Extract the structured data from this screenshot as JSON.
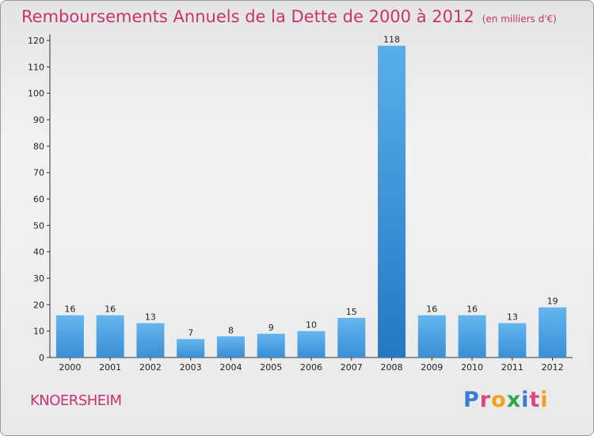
{
  "chart_data": {
    "type": "bar",
    "title": "Remboursements Annuels de la Dette de 2000 à 2012",
    "unit": "(en milliers d'€)",
    "categories": [
      "2000",
      "2001",
      "2002",
      "2003",
      "2004",
      "2005",
      "2006",
      "2007",
      "2008",
      "2009",
      "2010",
      "2011",
      "2012"
    ],
    "values": [
      16,
      16,
      13,
      7,
      8,
      9,
      10,
      15,
      118,
      16,
      16,
      13,
      19
    ],
    "ylim": [
      0,
      120
    ],
    "yticks": [
      0,
      10,
      20,
      30,
      40,
      50,
      60,
      70,
      80,
      90,
      100,
      110,
      120
    ],
    "bar_color": "#4a9ee0",
    "highlight_bar_color": "#2f86cc",
    "grid": false,
    "legend": "none"
  },
  "commune": "KNOERSHEIM",
  "logo": {
    "letters": [
      "P",
      "r",
      "o",
      "x",
      "i",
      "t",
      "i"
    ],
    "colors": [
      "#3a7bd5",
      "#e0457b",
      "#f2a11f",
      "#2aa84a",
      "#3a7bd5",
      "#e0457b",
      "#f2a11f"
    ]
  },
  "colors": {
    "title": "#c8336f",
    "axis": "#333333"
  }
}
